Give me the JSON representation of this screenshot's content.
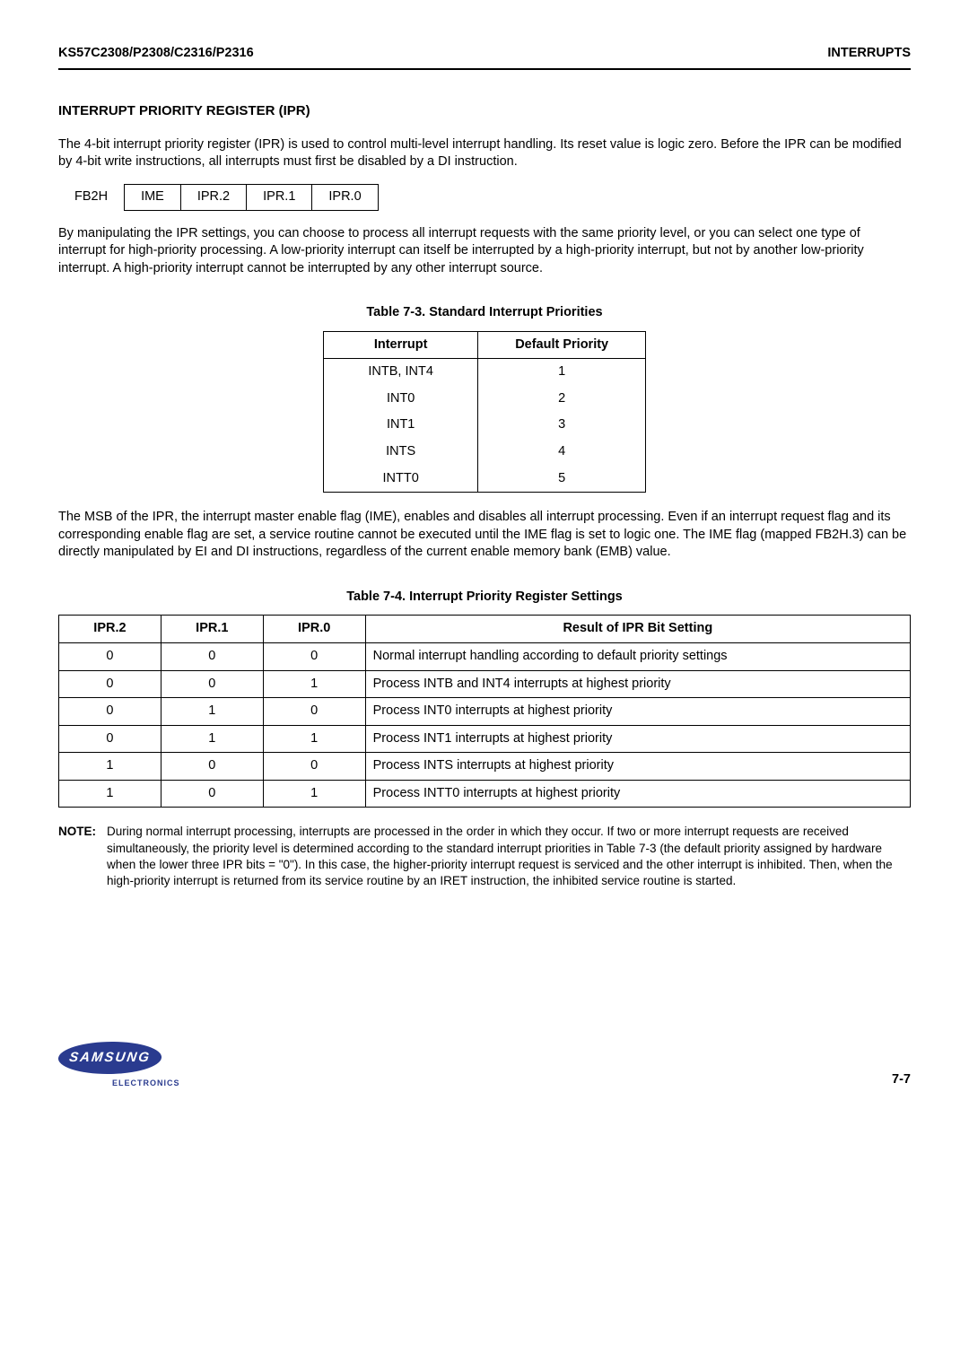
{
  "header": {
    "left": "KS57C2308/P2308/C2316/P2316",
    "right": "INTERRUPTS"
  },
  "section_title": "INTERRUPT PRIORITY REGISTER (IPR)",
  "para1": "The 4-bit interrupt priority register (IPR) is used to control multi-level interrupt handling. Its reset value is logic zero. Before the IPR can be modified by 4-bit write instructions, all interrupts must first be disabled by a DI instruction.",
  "register": {
    "label": "FB2H",
    "cells": [
      "IME",
      "IPR.2",
      "IPR.1",
      "IPR.0"
    ]
  },
  "para2": "By manipulating the IPR settings, you can choose to process all interrupt requests with the same priority level, or you can select one type of interrupt for high-priority processing. A low-priority interrupt can itself be interrupted by a high-priority interrupt, but not by another low-priority interrupt. A high-priority interrupt cannot be interrupted by any other interrupt source.",
  "table73": {
    "caption": "Table 7-3. Standard Interrupt Priorities",
    "headers": [
      "Interrupt",
      "Default Priority"
    ],
    "rows": [
      [
        "INTB, INT4",
        "1"
      ],
      [
        "INT0",
        "2"
      ],
      [
        "INT1",
        "3"
      ],
      [
        "INTS",
        "4"
      ],
      [
        "INTT0",
        "5"
      ]
    ]
  },
  "para3": "The MSB of the IPR, the interrupt master enable flag (IME), enables and disables all interrupt processing. Even if an interrupt request flag and its corresponding enable flag are set, a service routine cannot be executed until the IME flag is set to logic one. The IME flag (mapped FB2H.3) can be directly manipulated by EI and DI instructions, regardless of the current enable memory bank (EMB) value.",
  "table74": {
    "caption": "Table 7-4. Interrupt Priority Register Settings",
    "headers": [
      "IPR.2",
      "IPR.1",
      "IPR.0",
      "Result of IPR Bit Setting"
    ],
    "rows": [
      [
        "0",
        "0",
        "0",
        "Normal interrupt handling according to default priority settings"
      ],
      [
        "0",
        "0",
        "1",
        "Process  INTB and INT4 interrupts at highest priority"
      ],
      [
        "0",
        "1",
        "0",
        "Process INT0 interrupts at highest priority"
      ],
      [
        "0",
        "1",
        "1",
        "Process INT1 interrupts at highest priority"
      ],
      [
        "1",
        "0",
        "0",
        "Process INTS interrupts at highest priority"
      ],
      [
        "1",
        "0",
        "1",
        "Process INTT0 interrupts at highest priority"
      ]
    ]
  },
  "note": {
    "label": "NOTE:",
    "text": "During normal interrupt processing, interrupts are processed in the order in which they occur. If two or more interrupt requests are received simultaneously, the priority level is determined according to the standard interrupt priorities in Table 7-3 (the default priority assigned by hardware when the lower three IPR bits = \"0\"). In this case, the higher-priority interrupt request is serviced and the other interrupt is inhibited. Then, when the high-priority interrupt is returned from its service routine by an IRET instruction, the inhibited service routine is started."
  },
  "footer": {
    "logo_main": "SAMSUNG",
    "logo_sub": "ELECTRONICS",
    "page": "7-7"
  }
}
